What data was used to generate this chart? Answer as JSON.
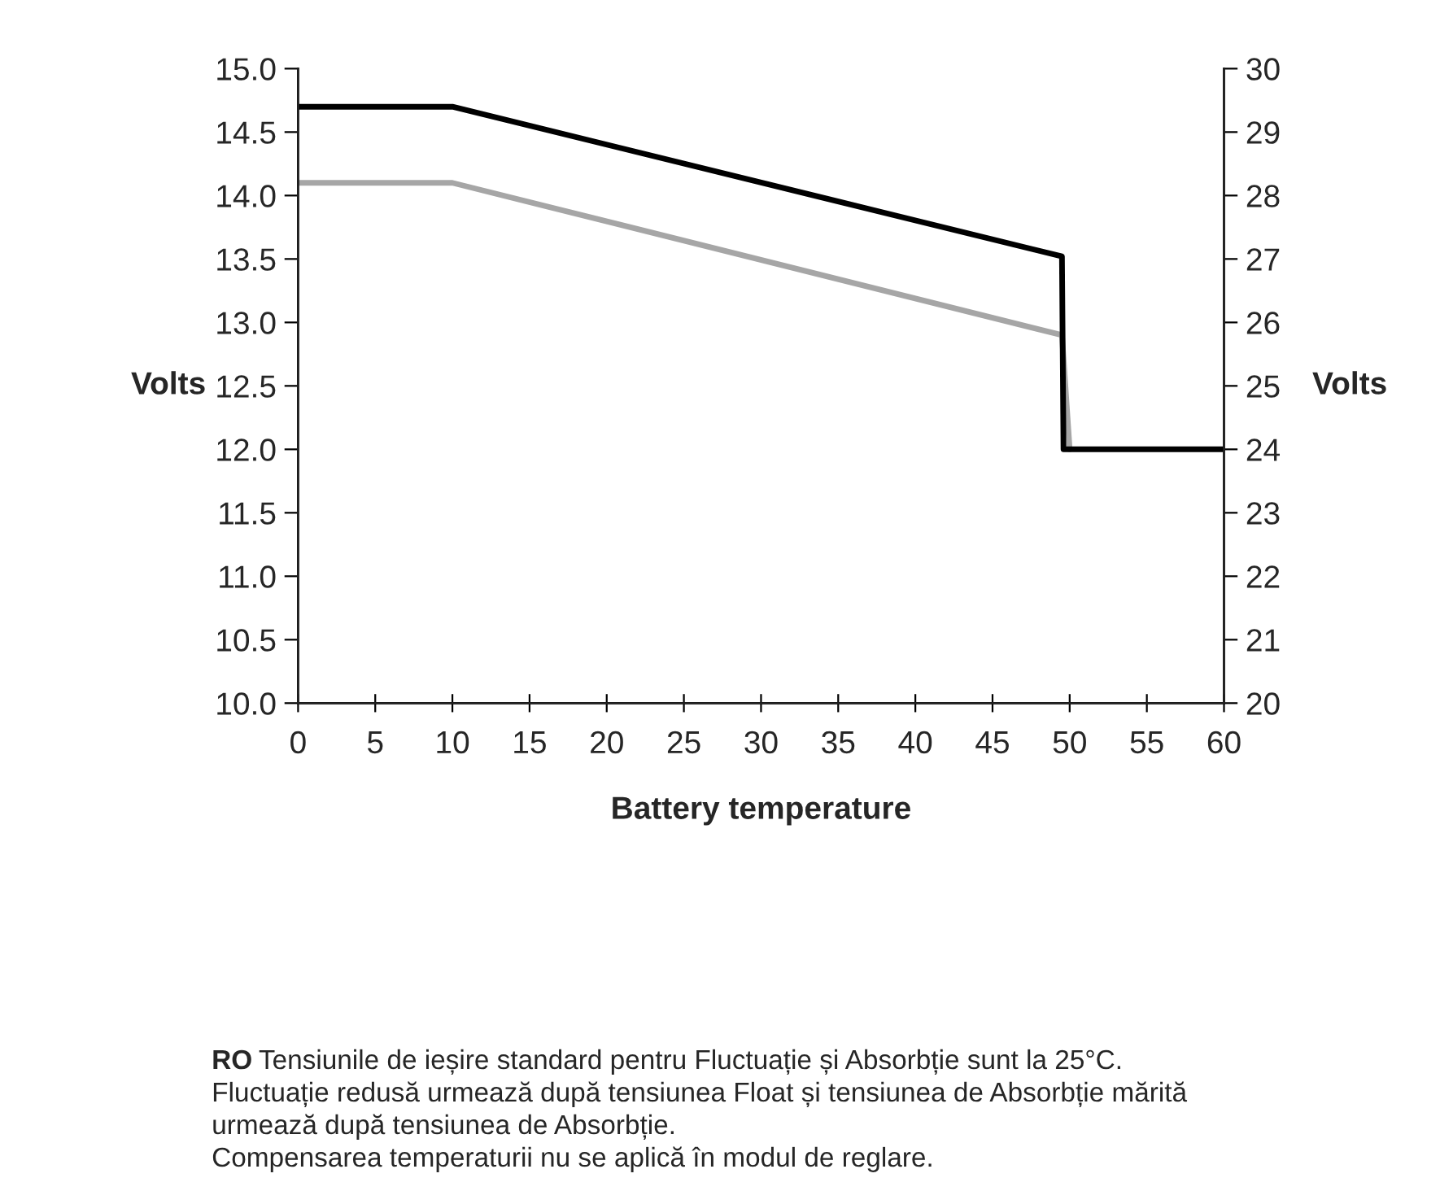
{
  "chart_data": {
    "type": "line",
    "xlabel": "Battery temperature",
    "ylabel": "Volts",
    "y2label": "Volts",
    "series": [
      {
        "color": "#a6a6a6",
        "x": [
          0,
          10,
          49.5,
          50
        ],
        "values": [
          14.1,
          14.1,
          12.9,
          12.0
        ]
      },
      {
        "color": "#000000",
        "x": [
          0,
          10,
          49.5,
          49.6,
          50,
          60
        ],
        "values": [
          14.7,
          14.7,
          13.52,
          12.0,
          12.0,
          12.0
        ]
      }
    ],
    "xlim": [
      0,
      60
    ],
    "xticks": [
      0,
      5,
      10,
      15,
      20,
      25,
      30,
      35,
      40,
      45,
      50,
      55,
      60
    ],
    "ylim": [
      10,
      15
    ],
    "yticks": [
      {
        "value": 10,
        "label": "10.0"
      },
      {
        "value": 10.5,
        "label": "10.5"
      },
      {
        "value": 11,
        "label": "11.0"
      },
      {
        "value": 11.5,
        "label": "11.5"
      },
      {
        "value": 12,
        "label": "12.0"
      },
      {
        "value": 12.5,
        "label": "12.5"
      },
      {
        "value": 13,
        "label": "13.0"
      },
      {
        "value": 13.5,
        "label": "13.5"
      },
      {
        "value": 14,
        "label": "14.0"
      },
      {
        "value": 14.5,
        "label": "14.5"
      },
      {
        "value": 15,
        "label": "15.0"
      }
    ],
    "y2lim": [
      20,
      30
    ],
    "y2ticks": [
      20,
      21,
      22,
      23,
      24,
      25,
      26,
      27,
      28,
      29,
      30
    ],
    "grid": false,
    "legend": false,
    "marker": "none",
    "line_style": "solid",
    "annotations": [
      "RO",
      "Tensiunile de ieșire standard pentru Fluctuație și Absorbție sunt la 25°C.",
      "Fluctuație redusă urmează după tensiunea Float și tensiunea de Absorbție mărită",
      "urmează după tensiunea de Absorbție.",
      "Compensarea temperaturii nu se aplică în modul de reglare."
    ]
  }
}
